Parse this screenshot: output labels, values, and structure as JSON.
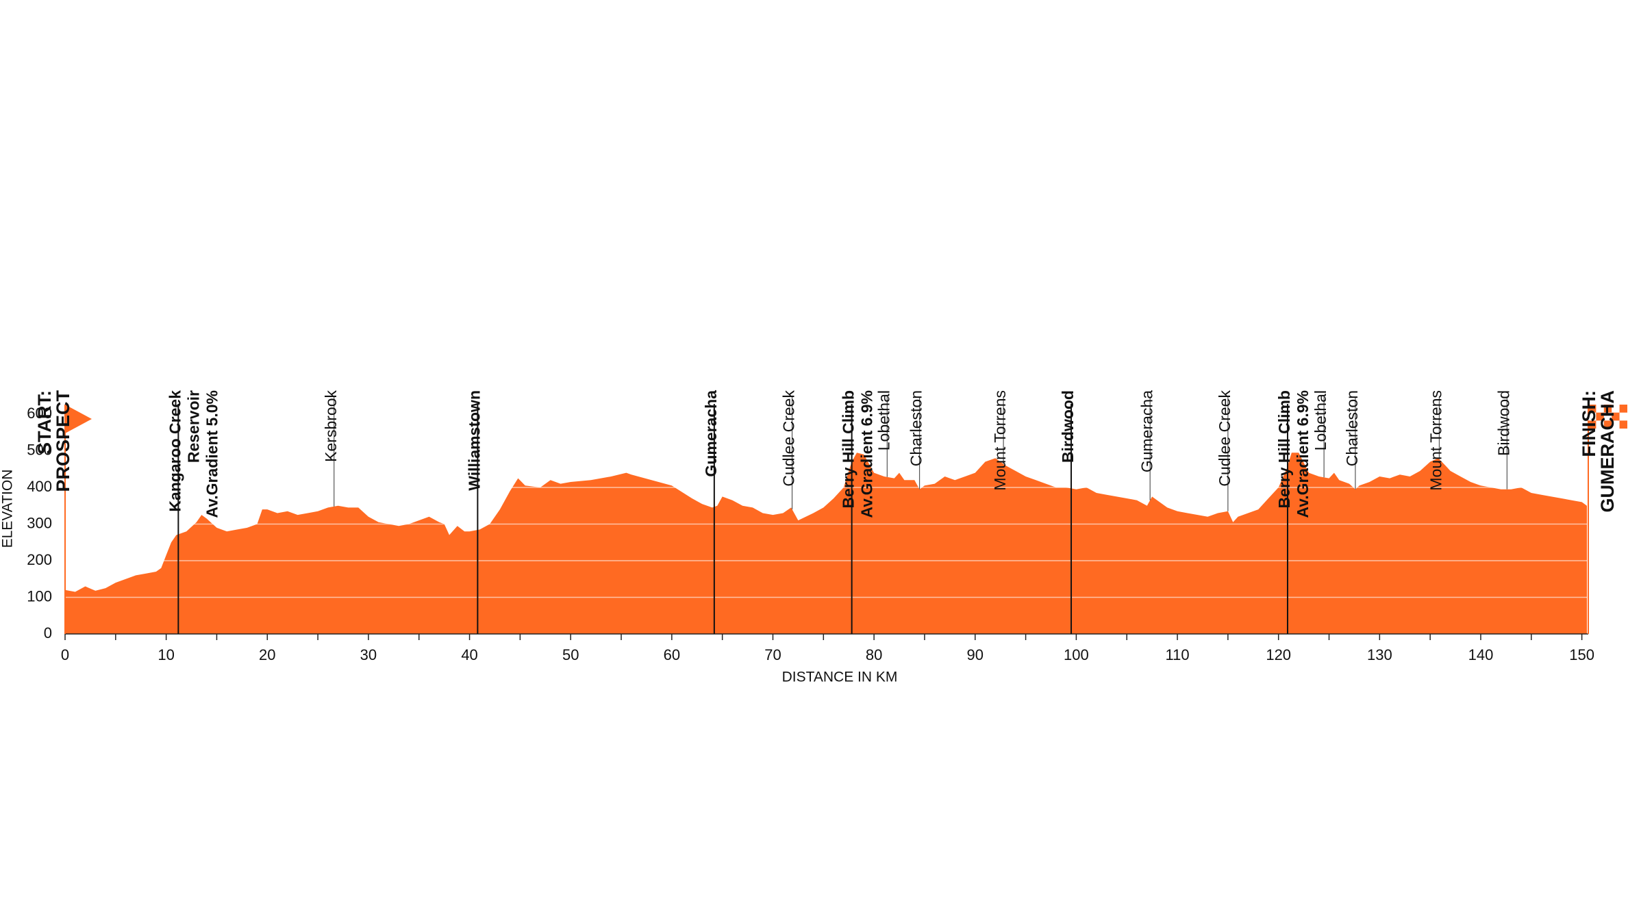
{
  "chart_data": {
    "type": "area",
    "x_label": "DISTANCE IN KM",
    "y_label": "ELEVATION",
    "color": "#ff6a22",
    "xlim": [
      0,
      150.5
    ],
    "ylim": [
      0,
      600
    ],
    "xticks": [
      0,
      10,
      20,
      30,
      40,
      50,
      60,
      70,
      80,
      90,
      100,
      110,
      120,
      130,
      140,
      150
    ],
    "xminor_ticks": [
      5,
      15,
      25,
      35,
      45,
      55,
      65,
      75,
      85,
      95,
      105,
      115,
      125,
      135,
      145
    ],
    "yticks": [
      0,
      100,
      200,
      300,
      400,
      500,
      600
    ],
    "grid": true,
    "x": [
      0,
      1,
      2,
      3,
      4,
      5,
      6,
      7,
      8,
      9,
      9.5,
      10,
      10.5,
      11,
      12,
      13,
      13.5,
      14,
      15,
      16,
      17,
      18,
      19,
      19.5,
      20,
      21,
      22,
      23,
      24,
      25,
      26,
      27,
      28,
      29,
      30,
      31,
      32,
      33,
      34,
      35,
      36,
      37,
      37.5,
      38,
      38.8,
      39.5,
      40,
      41,
      42,
      43,
      44,
      44.8,
      45.5,
      47,
      48,
      49,
      50,
      52,
      54,
      55.5,
      56,
      58,
      60,
      62,
      63,
      64,
      64.5,
      65,
      66,
      67,
      68,
      69,
      70,
      71,
      71.8,
      72.5,
      74,
      75,
      76,
      77,
      77.8,
      78.3,
      79,
      80,
      81,
      82,
      82.5,
      83,
      84,
      84.5,
      85,
      86,
      87,
      88,
      89,
      90,
      91,
      92,
      93,
      94,
      95,
      96,
      97,
      98,
      99,
      100,
      101,
      102,
      103,
      104,
      105,
      106,
      107,
      107.5,
      108,
      109,
      110,
      111,
      112,
      113,
      114,
      115,
      115.5,
      116,
      118,
      119,
      120,
      120.8,
      121.3,
      122,
      123,
      124,
      125,
      125.5,
      126,
      127,
      127.6,
      128,
      129,
      130,
      131,
      132,
      133,
      134,
      135,
      135.8,
      136.5,
      137,
      138,
      139,
      140,
      141,
      142,
      143,
      144,
      145,
      146,
      147,
      148,
      149,
      150,
      150.5
    ],
    "values": [
      120,
      115,
      130,
      118,
      125,
      140,
      150,
      160,
      165,
      170,
      180,
      215,
      250,
      270,
      280,
      305,
      325,
      315,
      290,
      280,
      285,
      290,
      300,
      340,
      340,
      330,
      335,
      325,
      330,
      335,
      345,
      350,
      345,
      345,
      320,
      305,
      300,
      295,
      300,
      310,
      320,
      305,
      300,
      270,
      295,
      280,
      280,
      285,
      300,
      340,
      390,
      425,
      405,
      400,
      420,
      410,
      415,
      420,
      430,
      440,
      435,
      420,
      405,
      370,
      355,
      345,
      350,
      375,
      365,
      350,
      345,
      330,
      325,
      330,
      345,
      310,
      330,
      345,
      370,
      400,
      470,
      495,
      490,
      440,
      430,
      425,
      440,
      420,
      420,
      395,
      405,
      410,
      430,
      420,
      430,
      440,
      470,
      480,
      460,
      445,
      430,
      420,
      410,
      400,
      400,
      395,
      400,
      385,
      380,
      375,
      370,
      365,
      350,
      375,
      365,
      345,
      335,
      330,
      325,
      320,
      330,
      335,
      305,
      320,
      340,
      370,
      400,
      450,
      495,
      495,
      440,
      430,
      425,
      440,
      420,
      410,
      395,
      405,
      415,
      430,
      425,
      435,
      430,
      445,
      470,
      480,
      460,
      445,
      430,
      415,
      405,
      400,
      395,
      395,
      400,
      385,
      380,
      375,
      370,
      365,
      360,
      350
    ],
    "start": {
      "lines": [
        "START:",
        "PROSPECT"
      ]
    },
    "finish": {
      "lines": [
        "FINISH:",
        "GUMERACHA"
      ]
    },
    "markers": [
      {
        "x": 11.2,
        "bold": true,
        "lines": [
          "Kangaroo Creek",
          "Reservoir",
          "Av.Gradient 5.0%"
        ]
      },
      {
        "x": 26.6,
        "bold": false,
        "lines": [
          "Kersbrook"
        ]
      },
      {
        "x": 40.8,
        "bold": true,
        "lines": [
          "Williamstown"
        ]
      },
      {
        "x": 64.2,
        "bold": true,
        "lines": [
          "Gumeracha"
        ]
      },
      {
        "x": 71.9,
        "bold": false,
        "lines": [
          "Cudlee Creek"
        ]
      },
      {
        "x": 77.8,
        "bold": true,
        "lines": [
          "Berry Hill Climb",
          "Av.Gradient 6.9%"
        ]
      },
      {
        "x": 81.3,
        "bold": false,
        "lines": [
          "Lobethal"
        ]
      },
      {
        "x": 84.5,
        "bold": false,
        "lines": [
          "Charleston"
        ]
      },
      {
        "x": 92.8,
        "bold": false,
        "lines": [
          "Mount Torrens"
        ]
      },
      {
        "x": 99.5,
        "bold": true,
        "lines": [
          "Birdwood"
        ]
      },
      {
        "x": 107.3,
        "bold": false,
        "lines": [
          "Gumeracha"
        ]
      },
      {
        "x": 115.0,
        "bold": false,
        "lines": [
          "Cudlee Creek"
        ]
      },
      {
        "x": 120.9,
        "bold": true,
        "lines": [
          "Berry Hill Climb",
          "Av.Gradient 6.9%"
        ]
      },
      {
        "x": 124.5,
        "bold": false,
        "lines": [
          "Lobethal"
        ]
      },
      {
        "x": 127.6,
        "bold": false,
        "lines": [
          "Charleston"
        ]
      },
      {
        "x": 135.9,
        "bold": false,
        "lines": [
          "Mount Torrens"
        ]
      },
      {
        "x": 142.6,
        "bold": false,
        "lines": [
          "Birdwood"
        ]
      }
    ]
  }
}
